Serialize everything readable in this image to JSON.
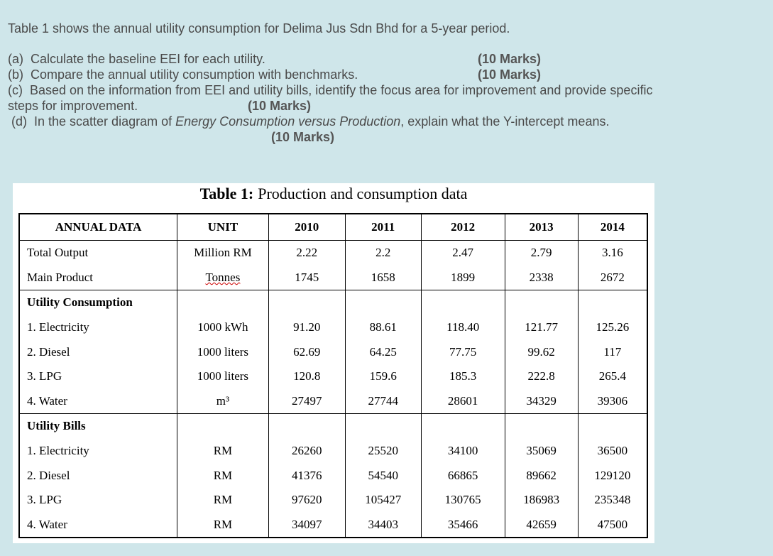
{
  "intro": "Table 1 shows the annual utility consumption for Delima Jus Sdn Bhd for a 5-year period.",
  "questions": [
    {
      "label": "(a)",
      "text": "Calculate the baseline EEI for each utility.",
      "marks": "(10 Marks)"
    },
    {
      "label": "(b)",
      "text": "Compare the annual utility consumption with benchmarks.",
      "marks": "(10 Marks)"
    },
    {
      "label": "(c)",
      "text": "Based on the information from EEI and utility bills, identify the focus area for improvement and provide specific",
      "text_cont": "steps for improvement.",
      "marks": "(10 Marks)"
    },
    {
      "label": "(d)",
      "text": "In the scatter diagram of ",
      "text_italic": "Energy Consumption versus Production",
      "text_after": ", explain what the Y-intercept means.",
      "marks": "(10 Marks)"
    }
  ],
  "table": {
    "caption_bold": "Table 1:",
    "caption": "Production and consumption data",
    "header": [
      "ANNUAL DATA",
      "UNIT",
      "2010",
      "2011",
      "2012",
      "2013",
      "2014"
    ],
    "groups": [
      {
        "rows": [
          [
            "Total Output",
            "Million RM",
            "2.22",
            "2.2",
            "2.47",
            "2.79",
            "3.16"
          ],
          [
            "Main Product",
            "Tonnes",
            "1745",
            "1658",
            "1899",
            "2338",
            "2672"
          ]
        ]
      },
      {
        "title": "Utility Consumption",
        "rows": [
          [
            "1. Electricity",
            "1000 kWh",
            "91.20",
            "88.61",
            "118.40",
            "121.77",
            "125.26"
          ],
          [
            "2. Diesel",
            "1000 liters",
            "62.69",
            "64.25",
            "77.75",
            "99.62",
            "117"
          ],
          [
            "3. LPG",
            "1000 liters",
            "120.8",
            "159.6",
            "185.3",
            "222.8",
            "265.4"
          ],
          [
            "4. Water",
            "m³",
            "27497",
            "27744",
            "28601",
            "34329",
            "39306"
          ]
        ]
      },
      {
        "title": "Utility Bills",
        "rows": [
          [
            "1. Electricity",
            "RM",
            "26260",
            "25520",
            "34100",
            "35069",
            "36500"
          ],
          [
            "2. Diesel",
            "RM",
            "41376",
            "54540",
            "66865",
            "89662",
            "129120"
          ],
          [
            "3. LPG",
            "RM",
            "97620",
            "105427",
            "130765",
            "186983",
            "235348"
          ],
          [
            "4. Water",
            "RM",
            "34097",
            "34403",
            "35466",
            "42659",
            "47500"
          ]
        ]
      }
    ]
  }
}
